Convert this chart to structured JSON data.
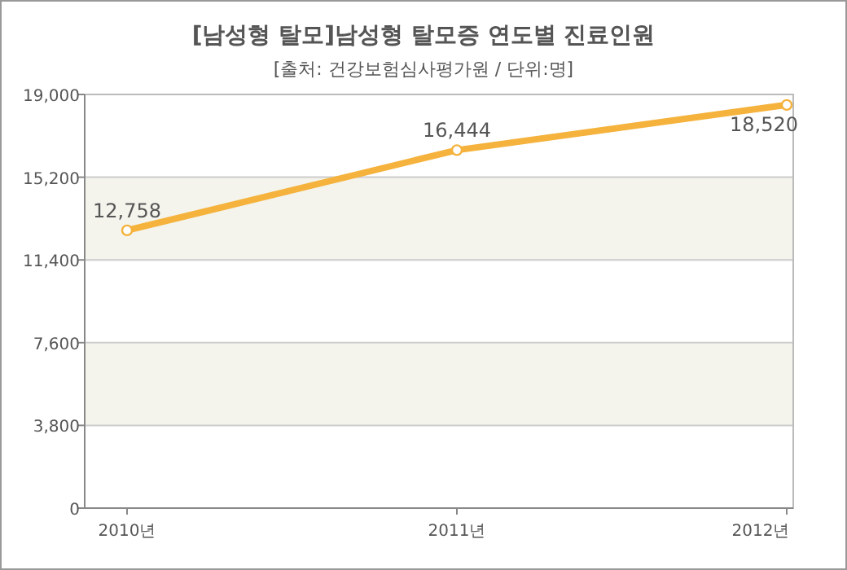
{
  "chart_data": {
    "type": "line",
    "title": "[남성형 탈모]남성형 탈모증 연도별 진료인원",
    "subtitle": "[출처: 건강보험심사평가원 / 단위:명]",
    "categories": [
      "2010년",
      "2011년",
      "2012년"
    ],
    "series": [
      {
        "color": "#f5b23c",
        "values": [
          12758,
          16444,
          18520
        ],
        "value_labels": [
          "12,758",
          "16,444",
          "18,520"
        ]
      }
    ],
    "ylim": [
      0,
      19000
    ],
    "yticks": [
      0,
      {
        "value": 3800,
        "label": "3,800"
      },
      {
        "value": 7600,
        "label": "7,600"
      },
      {
        "value": 11400,
        "label": "11,400"
      },
      {
        "value": 15200,
        "label": "15,200"
      },
      {
        "value": 19000,
        "label": "19,000"
      }
    ],
    "grid": "y",
    "marker": "circle",
    "line_style": "solid"
  }
}
